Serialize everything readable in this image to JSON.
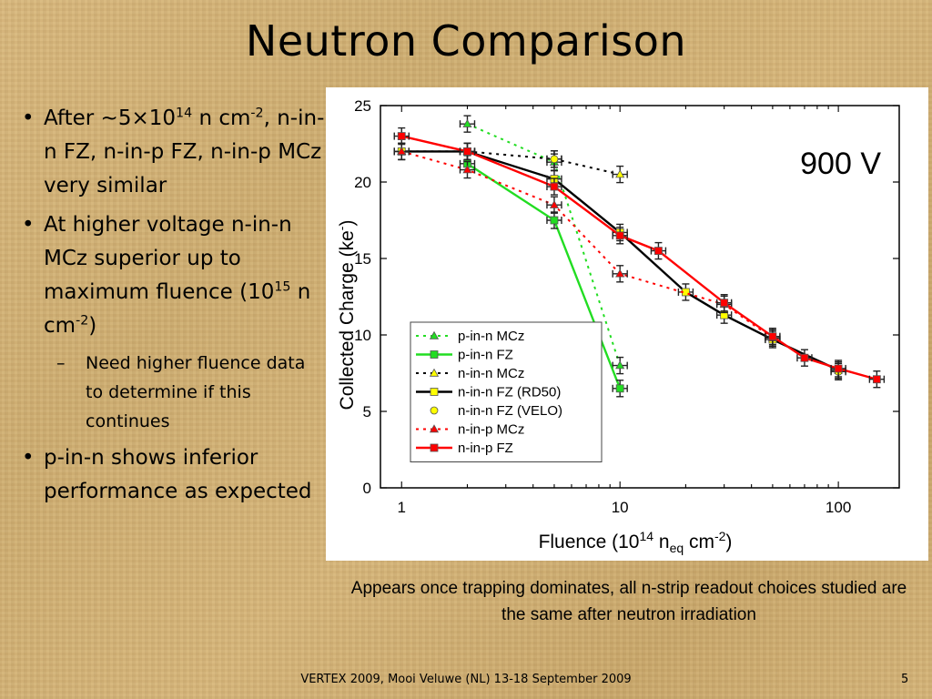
{
  "slide": {
    "title": "Neutron Comparison",
    "bullets": [
      {
        "parts": {
          "a": "After ~5×10",
          "sup1": "14",
          "b": " n cm",
          "sup2": "-2",
          "c": ", n-in-n FZ, n-in-p FZ, n-in-p MCz very similar"
        }
      },
      {
        "parts": {
          "a": "At higher voltage    n-in-n MCz superior up to maximum fluence (10",
          "sup1": "15",
          "b": " n cm",
          "sup2": "-2",
          "c": ")"
        }
      },
      {
        "text": "Need higher fluence data to determine if this continues"
      },
      {
        "text": "p-in-n shows inferior performance as expected"
      }
    ],
    "bullet_symbol": "•",
    "sub_bullet_symbol": "–",
    "caption": "Appears once trapping dominates, all n-strip readout choices studied are the same after neutron irradiation",
    "footer": "VERTEX 2009, Mooi Veluwe (NL) 13-18 September 2009",
    "page_number": "5"
  },
  "chart_data": {
    "type": "line",
    "annotation": "900 V",
    "x_scale": "log",
    "xlim": [
      0.8,
      190
    ],
    "ylim": [
      0,
      25
    ],
    "x_ticks": [
      {
        "value": 1,
        "label": "1"
      },
      {
        "value": 10,
        "label": "10"
      },
      {
        "value": 100,
        "label": "100"
      }
    ],
    "y_ticks": [
      0,
      5,
      10,
      15,
      20,
      25
    ],
    "xlabel": {
      "pre": "Fluence (10",
      "sup": "14",
      "mid": " n",
      "sub": "eq",
      "post1": " cm",
      "sup2": "-2",
      "post2": ")"
    },
    "ylabel": {
      "pre": "Collected Charge (ke",
      "sup": "-",
      "post": ")"
    },
    "legend_position": "bottom-left",
    "series": [
      {
        "name": "p-in-n MCz",
        "color": "#22dd22",
        "dash": "dot",
        "marker": "triangle",
        "marker_fill": "#22dd22",
        "points": [
          [
            2,
            23.8
          ],
          [
            5,
            21.3
          ],
          [
            10,
            8.0
          ]
        ]
      },
      {
        "name": "p-in-n FZ",
        "color": "#22dd22",
        "dash": "solid",
        "marker": "square",
        "marker_fill": "#22dd22",
        "points": [
          [
            2,
            21.2
          ],
          [
            5,
            17.5
          ],
          [
            10,
            6.5
          ]
        ]
      },
      {
        "name": "n-in-n MCz",
        "color": "#000000",
        "dash": "dot",
        "marker": "triangle",
        "marker_fill": "#ffff00",
        "points": [
          [
            1,
            22.0
          ],
          [
            2,
            22.0
          ],
          [
            5,
            21.5
          ],
          [
            10,
            20.5
          ]
        ]
      },
      {
        "name": "n-in-n FZ (RD50)",
        "color": "#000000",
        "dash": "solid",
        "marker": "square",
        "marker_fill": "#ffff00",
        "points": [
          [
            1,
            22.0
          ],
          [
            2,
            22.0
          ],
          [
            5,
            20.2
          ],
          [
            10,
            16.7
          ],
          [
            20,
            12.8
          ],
          [
            30,
            11.3
          ],
          [
            50,
            9.7
          ],
          [
            100,
            7.7
          ]
        ]
      },
      {
        "name": "n-in-n FZ (VELO)",
        "color": "#000000",
        "dash": "none",
        "marker": "circle",
        "marker_fill": "#ffff00",
        "points": [
          [
            5,
            21.5
          ],
          [
            100,
            7.6
          ]
        ]
      },
      {
        "name": "n-in-p MCz",
        "color": "#ff0000",
        "dash": "dot",
        "marker": "triangle",
        "marker_fill": "#ff0000",
        "points": [
          [
            1,
            22.0
          ],
          [
            2,
            20.8
          ],
          [
            5,
            18.5
          ],
          [
            10,
            14.0
          ],
          [
            30,
            12.0
          ],
          [
            50,
            9.8
          ]
        ]
      },
      {
        "name": "n-in-p FZ",
        "color": "#ff0000",
        "dash": "solid",
        "marker": "square",
        "marker_fill": "#ff0000",
        "points": [
          [
            1,
            23.0
          ],
          [
            2,
            22.0
          ],
          [
            5,
            19.7
          ],
          [
            10,
            16.5
          ],
          [
            15,
            15.5
          ],
          [
            30,
            12.1
          ],
          [
            50,
            9.9
          ],
          [
            70,
            8.5
          ],
          [
            100,
            7.8
          ],
          [
            150,
            7.1
          ]
        ]
      }
    ]
  }
}
